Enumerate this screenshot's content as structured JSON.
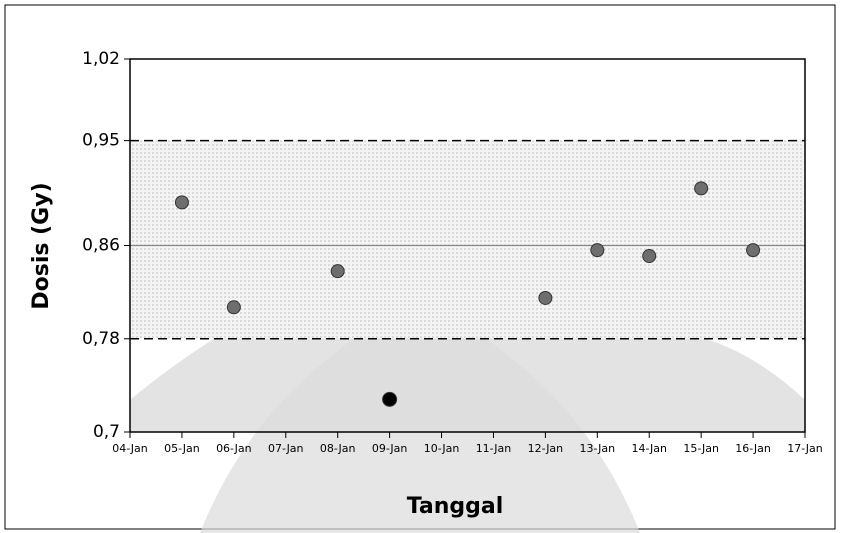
{
  "chart_data": {
    "type": "scatter",
    "x_label": "Tanggal",
    "y_label": "Dosis (Gy)",
    "categories": [
      "04-Jan",
      "05-Jan",
      "06-Jan",
      "07-Jan",
      "08-Jan",
      "09-Jan",
      "10-Jan",
      "11-Jan",
      "12-Jan",
      "13-Jan",
      "14-Jan",
      "15-Jan",
      "16-Jan",
      "17-Jan"
    ],
    "values": [
      null,
      0.897,
      0.807,
      null,
      0.838,
      0.728,
      null,
      null,
      0.815,
      0.856,
      0.851,
      0.909,
      0.856,
      null
    ],
    "colors": [
      null,
      "#6e6e6e",
      "#6e6e6e",
      null,
      "#6e6e6e",
      "#000000",
      null,
      null,
      "#6e6e6e",
      "#6e6e6e",
      "#6e6e6e",
      "#6e6e6e",
      "#6e6e6e",
      null
    ],
    "ylim": [
      0.7,
      1.02
    ],
    "yticks": [
      {
        "value": 0.7,
        "label": "0,7"
      },
      {
        "value": 0.78,
        "label": "0,78"
      },
      {
        "value": 0.86,
        "label": "0,86"
      },
      {
        "value": 0.95,
        "label": "0,95"
      },
      {
        "value": 1.02,
        "label": "1,02"
      }
    ],
    "band": [
      0.78,
      0.95
    ],
    "reference_lines": [
      {
        "value": 0.95,
        "style": "dashed"
      },
      {
        "value": 0.86,
        "style": "solid"
      },
      {
        "value": 0.78,
        "style": "dashed"
      }
    ]
  }
}
